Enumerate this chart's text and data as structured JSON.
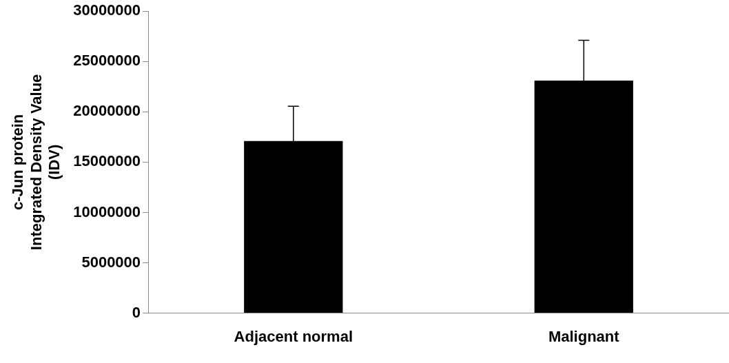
{
  "chart_data": {
    "type": "bar",
    "ylabel": "c-Jun protein\nIntegrated Density Value\n(IDV)",
    "categories": [
      "Adjacent normal",
      "Malignant"
    ],
    "values": [
      17100000,
      23100000
    ],
    "errors": [
      3450000,
      4000000
    ],
    "color": "#000000",
    "ylim": [
      0,
      30000000
    ],
    "yticks": [
      0,
      5000000,
      10000000,
      15000000,
      20000000,
      25000000,
      30000000
    ],
    "grid": false,
    "legend": false
  }
}
